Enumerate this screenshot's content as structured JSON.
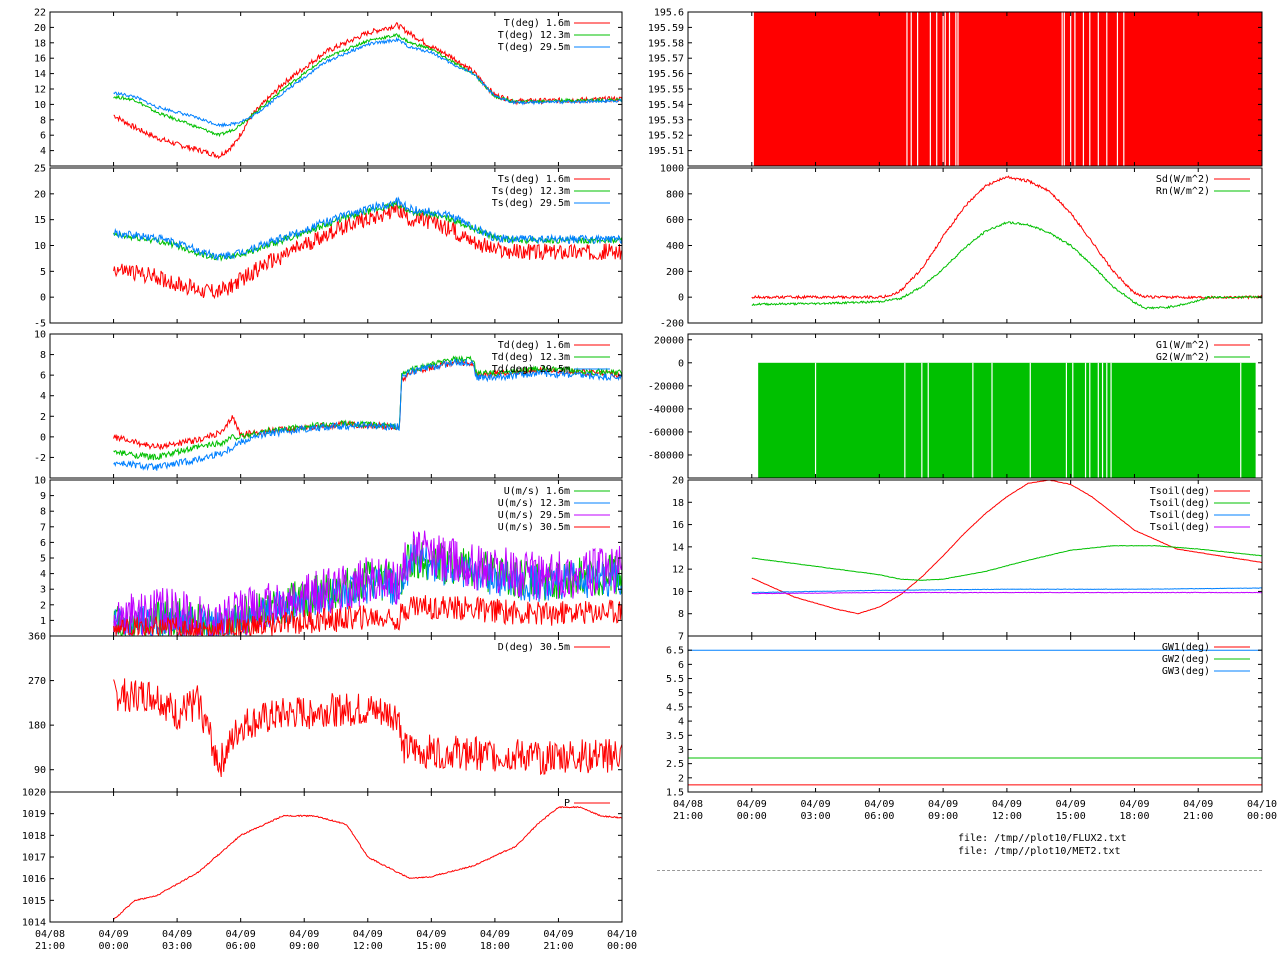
{
  "colors": {
    "red": "#ff0000",
    "green": "#00c000",
    "blue": "#0080ff",
    "purple": "#c000ff",
    "text": "#000000"
  },
  "time_axis": {
    "date_labels": [
      "04/08",
      "04/09",
      "04/09",
      "04/09",
      "04/09",
      "04/09",
      "04/09",
      "04/09",
      "04/09",
      "04/10"
    ],
    "time_labels": [
      "21:00",
      "00:00",
      "03:00",
      "06:00",
      "09:00",
      "12:00",
      "15:00",
      "18:00",
      "21:00",
      "00:00"
    ],
    "xlim_hours": [
      -3,
      24
    ]
  },
  "files": [
    "file: /tmp//plot10/FLUX2.txt",
    "file: /tmp//plot10/MET2.txt"
  ],
  "chart_data": [
    {
      "id": "T",
      "type": "line",
      "ylim": [
        2,
        22
      ],
      "yticks": [
        "4",
        "6",
        "8",
        "10",
        "12",
        "14",
        "16",
        "18",
        "20",
        "22"
      ],
      "series": [
        {
          "name": "T(deg)  1.6m",
          "color": "red",
          "noise": 0.35,
          "x": [
            0,
            1,
            2,
            3,
            4,
            5,
            5.7,
            6.5,
            8,
            10,
            12,
            13.4,
            14,
            15,
            16,
            17,
            18,
            19,
            21,
            24
          ],
          "y": [
            8.6,
            7,
            5.7,
            4.8,
            4.1,
            3.3,
            4.8,
            8.5,
            12.7,
            16.8,
            19.3,
            20.3,
            19.2,
            17.5,
            16.1,
            14.2,
            11.2,
            10.4,
            10.5,
            10.7
          ]
        },
        {
          "name": "T(deg) 12.3m",
          "color": "green",
          "noise": 0.2,
          "x": [
            0,
            1,
            2,
            3,
            4,
            5,
            5.7,
            6.5,
            8,
            10,
            12,
            13.4,
            14,
            15,
            16,
            17,
            18,
            19,
            21,
            24
          ],
          "y": [
            11,
            10.6,
            9,
            8,
            7,
            6,
            6.8,
            8.5,
            12,
            16,
            18.3,
            19,
            18,
            17.2,
            15.5,
            14,
            11,
            10.3,
            10.5,
            10.6
          ]
        },
        {
          "name": "T(deg) 29.5m",
          "color": "blue",
          "noise": 0.2,
          "x": [
            0,
            1,
            2,
            3,
            4,
            5,
            5.7,
            6.5,
            8,
            10,
            12,
            13.4,
            14,
            15,
            16,
            17,
            18,
            19,
            21,
            24
          ],
          "y": [
            11.5,
            11,
            9.7,
            9,
            8.2,
            7.3,
            7.5,
            8.3,
            11.5,
            15.5,
            17.8,
            18.4,
            17.4,
            16.8,
            15.2,
            14,
            11,
            10.2,
            10.3,
            10.5
          ]
        }
      ]
    },
    {
      "id": "Ts",
      "type": "line",
      "ylim": [
        -5,
        25
      ],
      "yticks": [
        "-5",
        "0",
        "5",
        "10",
        "15",
        "20",
        "25"
      ],
      "series": [
        {
          "name": "Ts(deg)  1.6m",
          "color": "red",
          "noise": 1.6,
          "x": [
            0,
            2,
            3,
            4,
            5,
            5.7,
            7,
            9,
            11,
            13.4,
            14,
            15,
            16,
            17.5,
            18,
            19,
            21,
            24
          ],
          "y": [
            5.5,
            4,
            2.5,
            1.5,
            1,
            2.5,
            6,
            10,
            14,
            17,
            15,
            14.5,
            13,
            10,
            9,
            8.7,
            8.8,
            8.8
          ]
        },
        {
          "name": "Ts(deg) 12.3m",
          "color": "green",
          "noise": 0.6,
          "x": [
            0,
            2,
            3,
            4,
            5,
            5.7,
            7,
            9,
            11,
            13.4,
            14,
            15,
            16,
            17.5,
            18,
            19,
            21,
            24
          ],
          "y": [
            12,
            11,
            10,
            8.5,
            7.5,
            8,
            9.5,
            12.5,
            15.5,
            18,
            16.5,
            16,
            15,
            12.5,
            11.5,
            11,
            11,
            11
          ]
        },
        {
          "name": "Ts(deg) 29.5m",
          "color": "blue",
          "noise": 0.8,
          "x": [
            0,
            2,
            3,
            4,
            5,
            5.7,
            7,
            9,
            11,
            13.4,
            14,
            15,
            16,
            17.5,
            18,
            19,
            21,
            24
          ],
          "y": [
            12.3,
            11.5,
            10.5,
            9,
            7.8,
            8.2,
            10,
            13,
            16,
            18.5,
            17,
            16.5,
            15.5,
            12.5,
            11.5,
            11.2,
            11.2,
            11.2
          ]
        }
      ]
    },
    {
      "id": "Td",
      "type": "line",
      "ylim": [
        -4,
        10
      ],
      "yticks": [
        "-2",
        "0",
        "2",
        "4",
        "6",
        "8",
        "10"
      ],
      "series": [
        {
          "name": "Td(deg)  1.6m",
          "color": "red",
          "noise": 0.3,
          "x": [
            0,
            2,
            4,
            5.2,
            5.6,
            6,
            7,
            9,
            11,
            13.5,
            13.6,
            14,
            16,
            17,
            17.1,
            18,
            20,
            22,
            24
          ],
          "y": [
            0,
            -1,
            -0.3,
            0.5,
            2,
            0.2,
            0.5,
            0.9,
            1.2,
            1,
            5.5,
            6.3,
            7.2,
            7,
            6,
            6.1,
            6.5,
            6.3,
            6
          ]
        },
        {
          "name": "Td(deg) 12.3m",
          "color": "green",
          "noise": 0.3,
          "x": [
            0,
            2,
            4,
            5.2,
            5.6,
            6,
            7,
            9,
            11,
            13.5,
            13.6,
            14,
            16,
            17,
            17.1,
            18,
            20,
            22,
            24
          ],
          "y": [
            -1.5,
            -2,
            -1,
            -0.5,
            0,
            0,
            0.5,
            1,
            1.3,
            1,
            6,
            6.5,
            7.5,
            7.5,
            6.2,
            6.2,
            6.6,
            6.4,
            6.2
          ]
        },
        {
          "name": "Td(deg) 29.5m",
          "color": "blue",
          "noise": 0.35,
          "x": [
            0,
            2,
            4,
            5.2,
            5.6,
            6,
            7,
            9,
            11,
            13.5,
            13.6,
            14,
            16,
            17,
            17.1,
            18,
            20,
            22,
            24
          ],
          "y": [
            -2.5,
            -3,
            -2.2,
            -1.5,
            -1,
            -0.5,
            0.2,
            0.8,
            1.1,
            1,
            5.8,
            6.3,
            7.2,
            7.3,
            5.8,
            5.8,
            6.2,
            6,
            5.8
          ]
        }
      ]
    },
    {
      "id": "U",
      "type": "line",
      "ylim": [
        0,
        10
      ],
      "yticks": [
        "1",
        "2",
        "3",
        "4",
        "5",
        "6",
        "7",
        "8",
        "9",
        "10"
      ],
      "series": [
        {
          "name": "U(m/s)  1.6m",
          "color": "green",
          "noise": 1.3,
          "x": [
            0,
            3,
            5,
            6,
            8,
            10,
            12,
            13.5,
            14,
            16,
            18,
            20,
            24
          ],
          "y": [
            0.8,
            1.2,
            0.5,
            1.2,
            2,
            2.8,
            3.5,
            3.5,
            5,
            4.5,
            4,
            3.5,
            4
          ]
        },
        {
          "name": "U(m/s) 12.3m",
          "color": "blue",
          "noise": 1.2,
          "x": [
            0,
            3,
            5,
            6,
            8,
            10,
            12,
            13.5,
            14,
            16,
            18,
            20,
            24
          ],
          "y": [
            0.6,
            1,
            0.4,
            1,
            1.8,
            2.5,
            3.2,
            3.2,
            4.8,
            4.3,
            3.8,
            3.3,
            3.8
          ]
        },
        {
          "name": "U(m/s) 29.5m",
          "color": "purple",
          "noise": 1.6,
          "x": [
            0,
            3,
            5,
            6,
            8,
            10,
            12,
            13.5,
            14,
            16,
            18,
            20,
            24
          ],
          "y": [
            1.2,
            1.6,
            0.8,
            1.5,
            2,
            2.8,
            3.6,
            3.5,
            5.5,
            4.8,
            4.3,
            3.8,
            4.2
          ]
        },
        {
          "name": "U(m/s) 30.5m",
          "color": "red",
          "noise": 0.8,
          "x": [
            0,
            3,
            5,
            6,
            8,
            10,
            12,
            13.5,
            14,
            16,
            18,
            20,
            24
          ],
          "y": [
            0.4,
            0.5,
            0.3,
            0.5,
            0.8,
            1,
            1.2,
            1.2,
            2,
            1.8,
            1.6,
            1.4,
            1.6
          ]
        }
      ]
    },
    {
      "id": "D",
      "type": "line",
      "ylim": [
        45,
        360
      ],
      "yticks": [
        "90",
        "180",
        "270",
        "360"
      ],
      "series": [
        {
          "name": "D(deg)  30.5m",
          "color": "red",
          "noise": 35,
          "x": [
            0,
            2,
            3,
            4,
            5,
            6,
            8,
            10,
            12,
            13.5,
            13.6,
            16,
            18,
            20,
            24
          ],
          "y": [
            240,
            240,
            200,
            230,
            100,
            180,
            200,
            210,
            210,
            200,
            130,
            125,
            120,
            115,
            120
          ]
        }
      ]
    },
    {
      "id": "P",
      "type": "line",
      "ylim": [
        1014,
        1020
      ],
      "yticks": [
        "1014",
        "1015",
        "1016",
        "1017",
        "1018",
        "1019",
        "1020"
      ],
      "series": [
        {
          "name": "P",
          "color": "red",
          "noise": 0.03,
          "x": [
            0,
            1,
            2,
            4,
            6,
            8,
            9.5,
            11,
            12,
            14,
            15,
            17,
            19,
            20,
            21,
            22,
            23,
            24
          ],
          "y": [
            1014.1,
            1015,
            1015.2,
            1016.3,
            1018,
            1018.9,
            1018.9,
            1018.5,
            1017,
            1016,
            1016.1,
            1016.6,
            1017.5,
            1018.5,
            1019.3,
            1019.3,
            1018.9,
            1018.8
          ]
        }
      ]
    },
    {
      "id": "Ps",
      "type": "spikes",
      "ylim": [
        195.5,
        195.6
      ],
      "yticks": [
        "195.51",
        "195.52",
        "195.53",
        "195.54",
        "195.55",
        "195.56",
        "195.57",
        "195.58",
        "195.59",
        "195.6"
      ],
      "series": [
        {
          "name": "",
          "color": "red",
          "fill_from": 0.1,
          "fill_to": 24,
          "gaps": [
            7.3,
            7.5,
            7.8,
            8.4,
            8.7,
            9,
            9.1,
            9.3,
            9.6,
            9.7,
            14.6,
            14.7,
            15,
            15.2,
            15.6,
            15.9,
            16.3,
            16.7,
            17.2,
            17.5
          ]
        }
      ]
    },
    {
      "id": "Sd",
      "type": "line",
      "ylim": [
        -200,
        1000
      ],
      "yticks": [
        "-200",
        "0",
        "200",
        "400",
        "600",
        "800",
        "1000"
      ],
      "series": [
        {
          "name": "Sd(W/m^2)",
          "color": "red",
          "noise": 10,
          "x": [
            0,
            6,
            6.5,
            7,
            8,
            9,
            10,
            11,
            11.5,
            12,
            13,
            14,
            15,
            16,
            17,
            18,
            18.5,
            19,
            24
          ],
          "y": [
            0,
            0,
            10,
            50,
            220,
            470,
            700,
            860,
            900,
            930,
            900,
            820,
            650,
            430,
            200,
            30,
            5,
            0,
            0
          ]
        },
        {
          "name": "Rn(W/m^2)",
          "color": "green",
          "noise": 8,
          "x": [
            0,
            3,
            5,
            6,
            7,
            8,
            9,
            10,
            11,
            12,
            13,
            14,
            15,
            16,
            17,
            18,
            18.5,
            19.5,
            20.5,
            21.5,
            24
          ],
          "y": [
            -55,
            -50,
            -40,
            -35,
            -10,
            80,
            220,
            380,
            510,
            580,
            560,
            500,
            400,
            250,
            80,
            -40,
            -85,
            -80,
            -50,
            0,
            0
          ]
        }
      ]
    },
    {
      "id": "G",
      "type": "spikes",
      "ylim": [
        -100000,
        0
      ],
      "yticks": [
        "-80000",
        "-60000",
        "-40000",
        "-20000",
        "0",
        "20000"
      ],
      "ymax": 25000,
      "series": [
        {
          "name": "G1(W/m^2)",
          "color": "red"
        },
        {
          "name": "G2(W/m^2)",
          "color": "green",
          "fill_from": 0.3,
          "fill_to": 23.7,
          "gaps": [
            3,
            7.2,
            8,
            8.3,
            10.4,
            11.3,
            13.1,
            14.8,
            15.1,
            15.7,
            15.9,
            16.3,
            16.5,
            16.7,
            16.9,
            23
          ]
        }
      ]
    },
    {
      "id": "Tsoil",
      "type": "line",
      "ylim": [
        6,
        20
      ],
      "yticks": [
        "8",
        "10",
        "12",
        "14",
        "16",
        "18",
        "20"
      ],
      "series": [
        {
          "name": "Tsoil(deg)",
          "color": "red",
          "noise": 0.02,
          "x": [
            0,
            2,
            4,
            5,
            6,
            7,
            8,
            9,
            10,
            11,
            12,
            13,
            14,
            15,
            16,
            17,
            18,
            20,
            22,
            24
          ],
          "y": [
            11.2,
            9.5,
            8.4,
            8,
            8.6,
            9.7,
            11.3,
            13.2,
            15.2,
            17,
            18.5,
            19.7,
            20,
            19.6,
            18.5,
            17,
            15.5,
            13.8,
            13.2,
            12.6
          ]
        },
        {
          "name": "Tsoil(deg)",
          "color": "green",
          "noise": 0.02,
          "x": [
            0,
            2,
            4,
            6,
            7,
            8,
            9,
            11,
            13,
            15,
            17,
            19,
            21,
            24
          ],
          "y": [
            13,
            12.5,
            12,
            11.5,
            11.1,
            11,
            11.1,
            11.8,
            12.8,
            13.7,
            14.1,
            14.1,
            13.8,
            13.2
          ]
        },
        {
          "name": "Tsoil(deg)",
          "color": "blue",
          "noise": 0.02,
          "x": [
            0,
            6,
            12,
            18,
            24
          ],
          "y": [
            9.9,
            10.1,
            10.2,
            10.2,
            10.3
          ]
        },
        {
          "name": "Tsoil(deg)",
          "color": "purple",
          "noise": 0.02,
          "x": [
            0,
            6,
            12,
            18,
            24
          ],
          "y": [
            9.8,
            9.9,
            9.9,
            9.9,
            9.9
          ]
        }
      ]
    },
    {
      "id": "GW",
      "type": "line",
      "ylim": [
        1.5,
        7
      ],
      "yticks": [
        "1.5",
        "2",
        "2.5",
        "3",
        "3.5",
        "4",
        "4.5",
        "5",
        "5.5",
        "6",
        "6.5",
        "7"
      ],
      "series": [
        {
          "name": "GW1(deg)",
          "color": "red",
          "noise": 0,
          "x": [
            -3,
            24
          ],
          "y": [
            1.75,
            1.75
          ]
        },
        {
          "name": "GW2(deg)",
          "color": "green",
          "noise": 0,
          "x": [
            -3,
            24
          ],
          "y": [
            2.7,
            2.7
          ]
        },
        {
          "name": "GW3(deg)",
          "color": "blue",
          "noise": 0,
          "x": [
            -3,
            24
          ],
          "y": [
            6.5,
            6.5
          ]
        }
      ]
    }
  ]
}
